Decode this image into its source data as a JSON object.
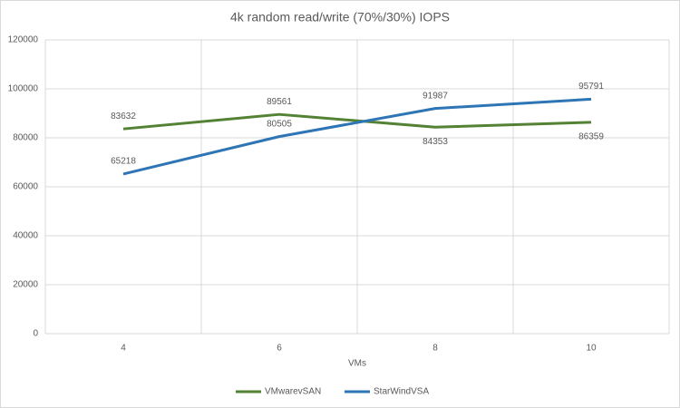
{
  "chart_data": {
    "type": "line",
    "title": "4k random read/write (70%/30%) IOPS",
    "x_label": "VMs",
    "categories": [
      4,
      6,
      8,
      10
    ],
    "series": [
      {
        "name": "VMwarevSAN",
        "color": "#548235",
        "values": [
          83632,
          89561,
          84353,
          86359
        ]
      },
      {
        "name": "StarWindVSA",
        "color": "#2e75b6",
        "values": [
          65218,
          80505,
          91987,
          95791
        ]
      }
    ],
    "ylim": [
      0,
      120000
    ],
    "yticks": [
      0,
      20000,
      40000,
      60000,
      80000,
      100000,
      120000
    ],
    "grid": true,
    "legend": "bottom",
    "data_labels": true
  }
}
